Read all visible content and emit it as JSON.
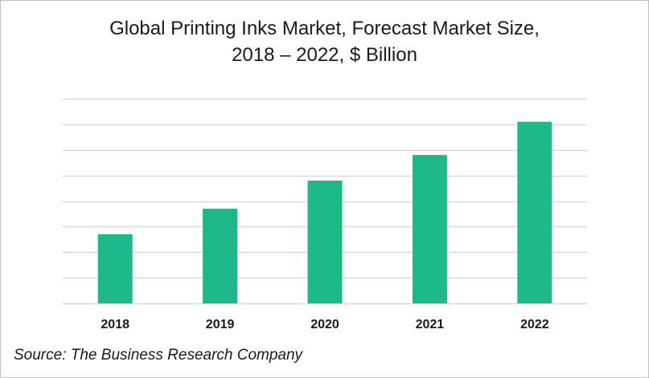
{
  "chart_data": {
    "type": "bar",
    "title_lines": [
      "Global Printing Inks Market, Forecast Market Size,",
      "2018 – 2022, $ Billion"
    ],
    "categories": [
      "2018",
      "2019",
      "2020",
      "2021",
      "2022"
    ],
    "values": [
      2.7,
      3.7,
      4.8,
      5.8,
      7.1
    ],
    "xlabel": "",
    "ylabel": "",
    "ylim": [
      0,
      8
    ],
    "y_ticks": 8,
    "y_tick_labels_shown": false,
    "grid": "horizontal",
    "legend": "none",
    "bar_color": "#1eb88a",
    "grid_color": "#d9d9d9"
  },
  "source": "Source: The Business Research Company"
}
